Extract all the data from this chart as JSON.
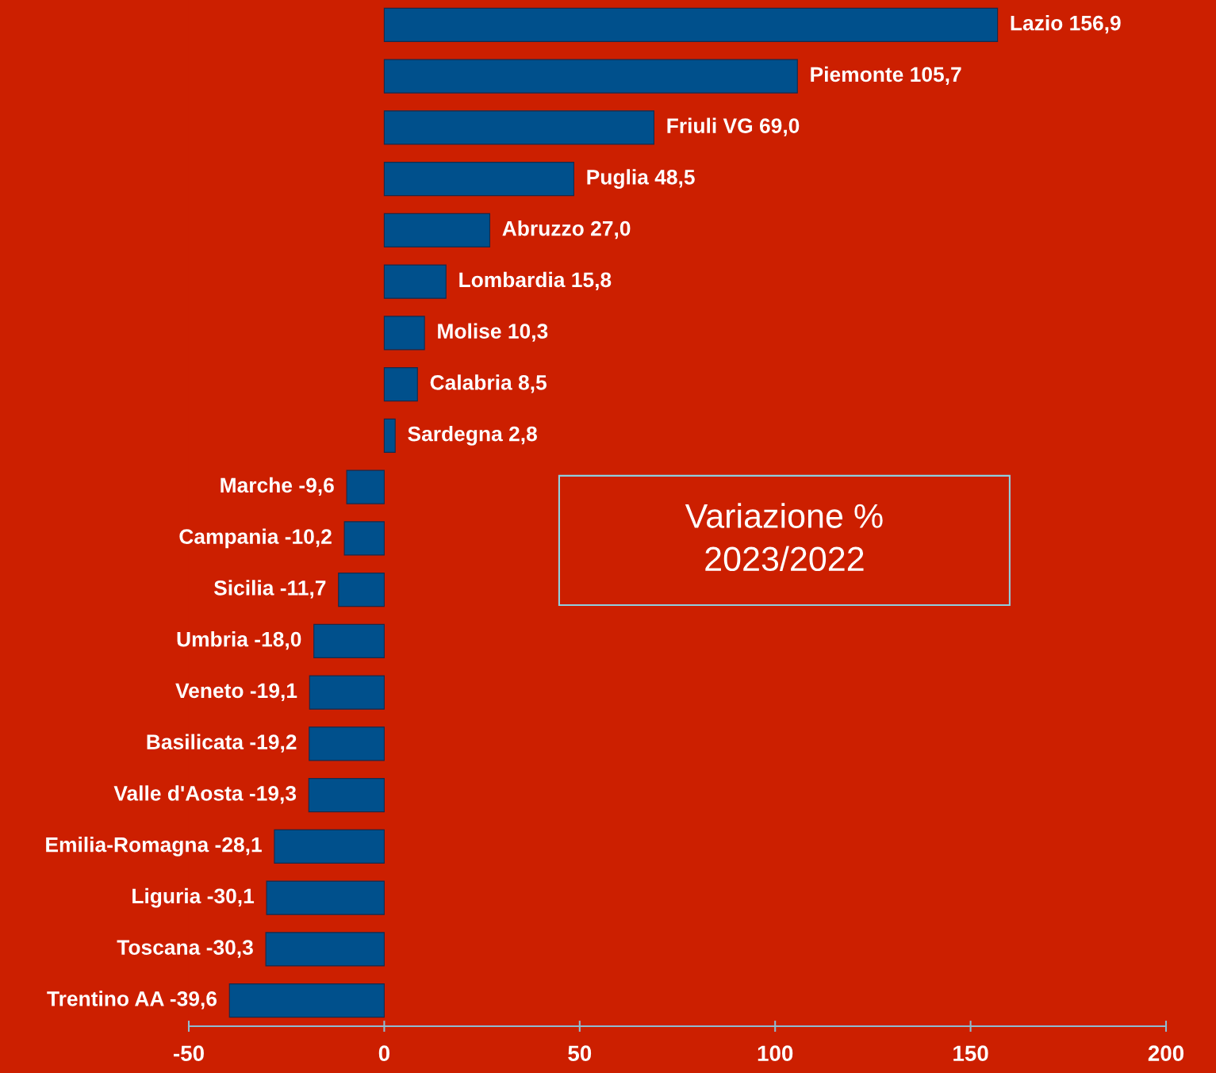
{
  "chart_data": {
    "type": "bar",
    "orientation": "horizontal",
    "categories": [
      "Lazio 156,9",
      "Piemonte 105,7",
      "Friuli VG 69,0",
      "Puglia 48,5",
      "Abruzzo 27,0",
      "Lombardia 15,8",
      "Molise 10,3",
      "Calabria 8,5",
      "Sardegna 2,8",
      "Marche -9,6",
      "Campania -10,2",
      "Sicilia -11,7",
      "Umbria -18,0",
      "Veneto -19,1",
      "Basilicata -19,2",
      "Valle d'Aosta -19,3",
      "Emilia-Romagna -28,1",
      "Liguria -30,1",
      "Toscana -30,3",
      "Trentino AA -39,6"
    ],
    "values": [
      156.9,
      105.7,
      69.0,
      48.5,
      27.0,
      15.8,
      10.3,
      8.5,
      2.8,
      -9.6,
      -10.2,
      -11.7,
      -18.0,
      -19.1,
      -19.2,
      -19.3,
      -28.1,
      -30.1,
      -30.3,
      -39.6
    ],
    "color": "#00508c",
    "xlim": [
      -50,
      200
    ],
    "xticks": [
      -50,
      0,
      50,
      100,
      150,
      200
    ],
    "grid": false,
    "legend": false,
    "annotations": [
      "Variazione %\n2023/2022"
    ]
  }
}
